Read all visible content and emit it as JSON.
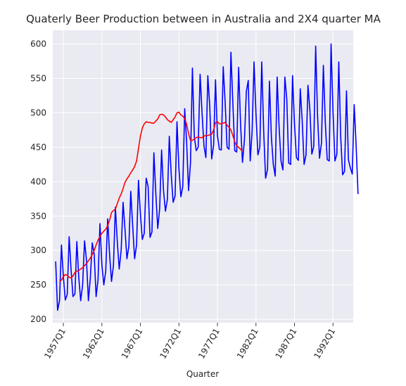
{
  "chart_data": {
    "type": "line",
    "title": "Quaterly Beer Production between in Australia and 2X4 quarter MA",
    "xlabel": "Quarter",
    "ylabel": "",
    "ylim": [
      195,
      620
    ],
    "yticks": [
      200,
      250,
      300,
      350,
      400,
      450,
      500,
      550,
      600
    ],
    "xticks": [
      "1957Q1",
      "1962Q1",
      "1967Q1",
      "1972Q1",
      "1977Q1",
      "1982Q1",
      "1987Q1",
      "1992Q1"
    ],
    "grid": true,
    "x_start": "1956Q1",
    "x_end": "1994Q2",
    "series": [
      {
        "color": "#0000ff",
        "start_index": 0,
        "values": [
          284,
          213,
          227,
          308,
          262,
          228,
          236,
          320,
          272,
          233,
          237,
          313,
          261,
          227,
          250,
          314,
          286,
          227,
          260,
          311,
          295,
          233,
          257,
          339,
          279,
          250,
          270,
          346,
          294,
          255,
          278,
          363,
          313,
          273,
          300,
          370,
          331,
          288,
          306,
          386,
          335,
          288,
          308,
          402,
          353,
          316,
          325,
          405,
          393,
          319,
          327,
          442,
          383,
          332,
          361,
          446,
          387,
          357,
          374,
          466,
          410,
          370,
          379,
          487,
          419,
          378,
          393,
          506,
          458,
          387,
          427,
          565,
          465,
          445,
          450,
          556,
          500,
          452,
          435,
          554,
          510,
          433,
          453,
          548,
          467,
          447,
          446,
          567,
          515,
          450,
          447,
          588,
          514,
          445,
          443,
          566,
          484,
          428,
          460,
          531,
          547,
          430,
          473,
          574,
          499,
          439,
          450,
          574,
          474,
          405,
          418,
          546,
          465,
          425,
          408,
          552,
          480,
          430,
          417,
          552,
          520,
          427,
          425,
          554,
          484,
          435,
          431,
          535,
          489,
          425,
          439,
          540,
          504,
          440,
          451,
          597,
          494,
          434,
          456,
          569,
          486,
          432,
          430,
          600,
          502,
          430,
          440,
          574,
          465,
          410,
          415,
          532,
          432,
          420,
          411,
          512,
          453,
          382
        ]
      },
      {
        "color": "#ff0000",
        "start_index": 2,
        "values": [
          255,
          257,
          262,
          265,
          264,
          261,
          260,
          263,
          268,
          270,
          271,
          273,
          275,
          278,
          281,
          285,
          289,
          294,
          300,
          308,
          315,
          320,
          325,
          328,
          331,
          336,
          344,
          355,
          358,
          360,
          368,
          376,
          382,
          390,
          399,
          404,
          408,
          413,
          417,
          422,
          430,
          448,
          466,
          478,
          484,
          487,
          486,
          486,
          485,
          485,
          488,
          491,
          497,
          498,
          497,
          494,
          490,
          488,
          486,
          490,
          494,
          500,
          501,
          497,
          495,
          492,
          483,
          470,
          460,
          460,
          462,
          464,
          465,
          464,
          464,
          466,
          467,
          467,
          468,
          469,
          475,
          486,
          487,
          484,
          484,
          485,
          486,
          482,
          479,
          475,
          467,
          458,
          452,
          450,
          447,
          444
        ]
      }
    ]
  }
}
